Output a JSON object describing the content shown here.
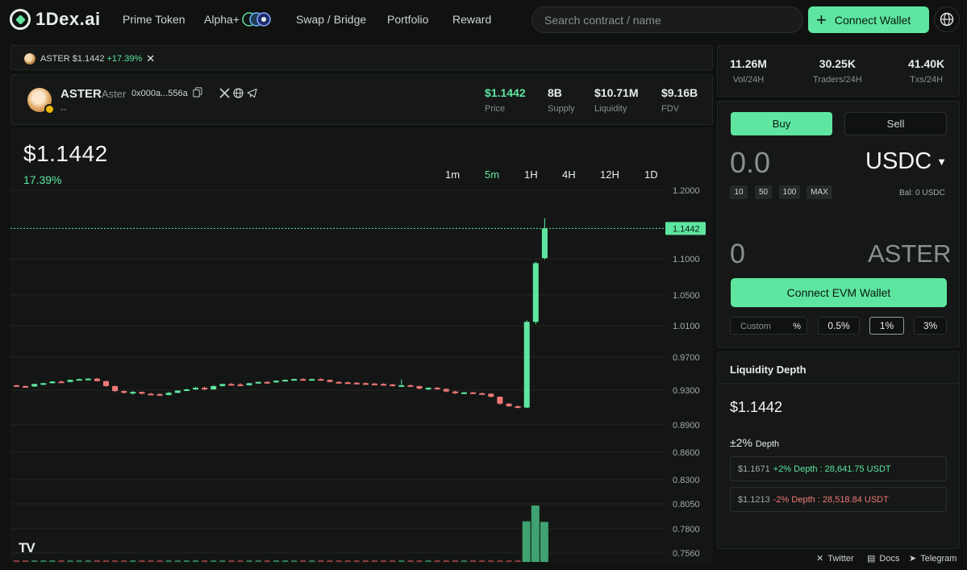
{
  "brand": {
    "name": "1Dex.ai"
  },
  "nav": {
    "items": [
      "Prime Token",
      "Alpha+",
      "Swap / Bridge",
      "Portfolio",
      "Reward"
    ],
    "search_placeholder": "Search contract / name",
    "connect_label": "Connect Wallet"
  },
  "tab": {
    "label": "ASTER $1.1442",
    "change": "+17.39%"
  },
  "token": {
    "symbol": "ASTER",
    "name": "Aster",
    "address": "0x000a...556a",
    "sub": "--",
    "stats": [
      {
        "value": "$1.1442",
        "label": "Price"
      },
      {
        "value": "8B",
        "label": "Supply"
      },
      {
        "value": "$10.71M",
        "label": "Liquidity"
      },
      {
        "value": "$9.16B",
        "label": "FDV"
      }
    ]
  },
  "chart_header": {
    "price": "$1.1442",
    "change": "17.39%"
  },
  "timeframes": [
    "1m",
    "5m",
    "1H",
    "4H",
    "12H",
    "1D"
  ],
  "active_timeframe": "5m",
  "chart_data": {
    "type": "candlestick",
    "y_ticks": [
      "1.2000",
      "1.1442",
      "1.1000",
      "1.0500",
      "1.0100",
      "0.9700",
      "0.9300",
      "0.8900",
      "0.8600",
      "0.8300",
      "0.8050",
      "0.7800",
      "0.7560"
    ],
    "current_price": 1.1442,
    "up_color": "#5ee6a0",
    "down_color": "#f07878",
    "candles": [
      [
        0.936,
        0.9365,
        0.9345,
        0.935
      ],
      [
        0.935,
        0.936,
        0.934,
        0.9345
      ],
      [
        0.9345,
        0.938,
        0.934,
        0.9375
      ],
      [
        0.9375,
        0.939,
        0.9365,
        0.9385
      ],
      [
        0.9385,
        0.941,
        0.938,
        0.9405
      ],
      [
        0.9405,
        0.942,
        0.9395,
        0.94
      ],
      [
        0.94,
        0.943,
        0.9395,
        0.9425
      ],
      [
        0.9425,
        0.944,
        0.942,
        0.9435
      ],
      [
        0.9435,
        0.9445,
        0.9425,
        0.944
      ],
      [
        0.944,
        0.945,
        0.9405,
        0.941
      ],
      [
        0.941,
        0.9415,
        0.934,
        0.935
      ],
      [
        0.935,
        0.9355,
        0.9275,
        0.929
      ],
      [
        0.929,
        0.93,
        0.926,
        0.927
      ],
      [
        0.927,
        0.929,
        0.925,
        0.928
      ],
      [
        0.928,
        0.9285,
        0.925,
        0.926
      ],
      [
        0.926,
        0.927,
        0.9245,
        0.9255
      ],
      [
        0.9255,
        0.9265,
        0.9235,
        0.9245
      ],
      [
        0.9245,
        0.928,
        0.924,
        0.927
      ],
      [
        0.927,
        0.93,
        0.9265,
        0.9295
      ],
      [
        0.9295,
        0.932,
        0.929,
        0.931
      ],
      [
        0.931,
        0.934,
        0.9305,
        0.933
      ],
      [
        0.933,
        0.9345,
        0.93,
        0.931
      ],
      [
        0.931,
        0.936,
        0.9305,
        0.935
      ],
      [
        0.935,
        0.938,
        0.9345,
        0.9375
      ],
      [
        0.9375,
        0.939,
        0.936,
        0.937
      ],
      [
        0.937,
        0.9385,
        0.935,
        0.936
      ],
      [
        0.936,
        0.939,
        0.9355,
        0.9385
      ],
      [
        0.9385,
        0.9405,
        0.938,
        0.94
      ],
      [
        0.94,
        0.941,
        0.9385,
        0.9395
      ],
      [
        0.9395,
        0.942,
        0.939,
        0.9415
      ],
      [
        0.9415,
        0.943,
        0.941,
        0.9425
      ],
      [
        0.9425,
        0.944,
        0.942,
        0.9435
      ],
      [
        0.9435,
        0.9445,
        0.9415,
        0.942
      ],
      [
        0.942,
        0.944,
        0.9415,
        0.9435
      ],
      [
        0.9435,
        0.9445,
        0.942,
        0.9425
      ],
      [
        0.9425,
        0.943,
        0.9395,
        0.94
      ],
      [
        0.94,
        0.941,
        0.9385,
        0.9395
      ],
      [
        0.9395,
        0.9405,
        0.938,
        0.939
      ],
      [
        0.939,
        0.94,
        0.938,
        0.9385
      ],
      [
        0.9385,
        0.9395,
        0.937,
        0.938
      ],
      [
        0.938,
        0.939,
        0.9365,
        0.9375
      ],
      [
        0.9375,
        0.9385,
        0.936,
        0.937
      ],
      [
        0.937,
        0.9375,
        0.9345,
        0.9355
      ],
      [
        0.9355,
        0.943,
        0.9345,
        0.936
      ],
      [
        0.936,
        0.937,
        0.9345,
        0.935
      ],
      [
        0.935,
        0.9355,
        0.931,
        0.932
      ],
      [
        0.932,
        0.9335,
        0.93,
        0.933
      ],
      [
        0.933,
        0.934,
        0.931,
        0.9315
      ],
      [
        0.9315,
        0.9325,
        0.9275,
        0.9285
      ],
      [
        0.9285,
        0.9295,
        0.9255,
        0.9265
      ],
      [
        0.9265,
        0.928,
        0.9255,
        0.9275
      ],
      [
        0.9275,
        0.928,
        0.9255,
        0.9265
      ],
      [
        0.9265,
        0.9275,
        0.925,
        0.926
      ],
      [
        0.926,
        0.9265,
        0.9215,
        0.9225
      ],
      [
        0.9225,
        0.923,
        0.913,
        0.9145
      ],
      [
        0.9145,
        0.915,
        0.9105,
        0.9115
      ],
      [
        0.9115,
        0.9125,
        0.909,
        0.91
      ],
      [
        0.91,
        1.017,
        0.9095,
        1.015
      ],
      [
        1.015,
        1.096,
        1.012,
        1.094
      ],
      [
        1.101,
        1.1592,
        1.099,
        1.1442
      ]
    ],
    "volume_color": "#3fa271",
    "volume_bars": [
      {
        "index": 57,
        "level": 0.72
      },
      {
        "index": 58,
        "level": 1.0
      },
      {
        "index": 59,
        "level": 0.71
      }
    ]
  },
  "right_stats": [
    {
      "value": "11.26M",
      "label": "Vol/24H"
    },
    {
      "value": "30.25K",
      "label": "Traders/24H"
    },
    {
      "value": "41.40K",
      "label": "Txs/24H"
    }
  ],
  "trade": {
    "buy_label": "Buy",
    "sell_label": "Sell",
    "pay_amount": "0.0",
    "pay_currency": "USDC",
    "quick_amounts": [
      "10",
      "50",
      "100",
      "MAX"
    ],
    "balance": "Bal: 0 USDC",
    "receive_amount": "0",
    "receive_currency": "ASTER",
    "connect_evm_label": "Connect EVM Wallet",
    "slippage_placeholder": "Custom",
    "slippage_unit": "%",
    "slippage_options": [
      "0.5%",
      "1%",
      "3%"
    ],
    "slippage_active": "1%"
  },
  "depth": {
    "title": "Liquidity Depth",
    "price": "$1.1442",
    "range_label": "±2%",
    "range_suffix": "Depth",
    "rows": [
      {
        "price": "$1.1671",
        "text": "+2% Depth : 28,641.75 USDT",
        "dir": "up"
      },
      {
        "price": "$1.1213",
        "text": "-2% Depth : 28,518.84 USDT",
        "dir": "down"
      }
    ]
  },
  "footer": {
    "links": [
      "Twitter",
      "Docs",
      "Telegram"
    ]
  }
}
